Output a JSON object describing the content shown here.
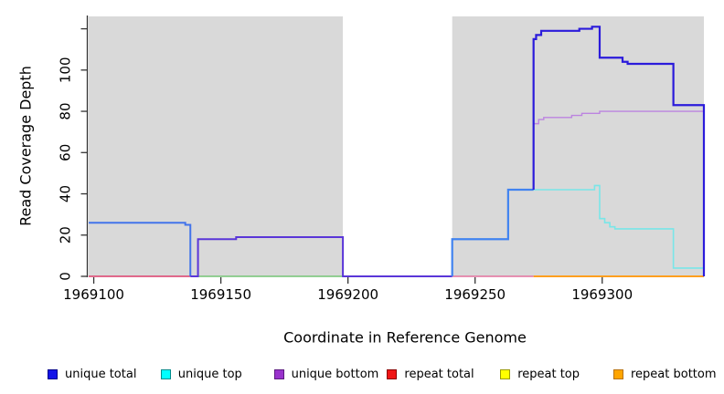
{
  "chart_data": {
    "type": "line",
    "step": true,
    "title": "",
    "xlabel": "Coordinate in Reference Genome",
    "ylabel": "Read Coverage Depth",
    "xlim": [
      1969098,
      1969340
    ],
    "ylim": [
      0,
      126
    ],
    "grid": false,
    "panel_color": "#d9d9d9",
    "background_panels": [
      [
        1969098,
        1969198
      ],
      [
        1969241,
        1969340
      ]
    ],
    "gap_region": [
      1969198,
      1969241
    ],
    "xticks": [
      {
        "v": 1969100,
        "label": "1969100"
      },
      {
        "v": 1969150,
        "label": "1969150"
      },
      {
        "v": 1969200,
        "label": "1969200"
      },
      {
        "v": 1969250,
        "label": "1969250"
      },
      {
        "v": 1969300,
        "label": "1969300"
      }
    ],
    "yticks": [
      {
        "v": 0,
        "label": "0"
      },
      {
        "v": 20,
        "label": "20"
      },
      {
        "v": 40,
        "label": "40"
      },
      {
        "v": 60,
        "label": "60"
      },
      {
        "v": 80,
        "label": "80"
      },
      {
        "v": 100,
        "label": "100"
      },
      {
        "v": 120,
        "label": ""
      }
    ],
    "series": [
      {
        "name": "repeat-total-left",
        "color": "#dc3d6b",
        "width": 1.4,
        "points": [
          [
            1969098,
            0
          ],
          [
            1969138,
            0
          ]
        ]
      },
      {
        "name": "zero-coverage-green",
        "color": "#74c476",
        "width": 1.6,
        "points": [
          [
            1969139,
            0
          ],
          [
            1969198,
            0
          ]
        ]
      },
      {
        "name": "repeat-total-right",
        "color": "#e4709e",
        "width": 1.6,
        "points": [
          [
            1969241,
            0
          ],
          [
            1969273,
            0
          ]
        ]
      },
      {
        "name": "repeat-bottom",
        "color": "#ff9f1f",
        "width": 2,
        "points": [
          [
            1969273,
            0
          ],
          [
            1969340,
            0
          ]
        ]
      },
      {
        "name": "unique-bottom",
        "color": "#bc84e0",
        "width": 1.4,
        "drop_end": true,
        "points": [
          [
            1969273,
            74
          ],
          [
            1969275,
            76
          ],
          [
            1969277,
            77
          ],
          [
            1969288,
            78
          ],
          [
            1969292,
            79
          ],
          [
            1969299,
            80
          ],
          [
            1969340,
            80
          ]
        ]
      },
      {
        "name": "unique-top",
        "color": "#79e6e8",
        "width": 1.6,
        "drop_end": true,
        "points": [
          [
            1969273,
            42
          ],
          [
            1969297,
            44
          ],
          [
            1969299,
            28
          ],
          [
            1969301,
            26
          ],
          [
            1969303,
            24
          ],
          [
            1969305,
            23
          ],
          [
            1969328,
            4
          ],
          [
            1969340,
            4
          ]
        ]
      },
      {
        "name": "unique-total-left",
        "color": "#4374ea",
        "width": 2,
        "drop_end": true,
        "points": [
          [
            1969098,
            26
          ],
          [
            1969136,
            25
          ],
          [
            1969138,
            25
          ]
        ]
      },
      {
        "name": "unique-total-mid",
        "color": "#5a36d8",
        "width": 2,
        "points": [
          [
            1969138,
            0
          ],
          [
            1969141,
            18
          ],
          [
            1969156,
            19
          ],
          [
            1969198,
            0
          ],
          [
            1969241,
            0
          ]
        ]
      },
      {
        "name": "unique-total-right",
        "color": "#4183f0",
        "width": 2.2,
        "enter_value": 0,
        "points": [
          [
            1969241,
            18
          ],
          [
            1969263,
            42
          ],
          [
            1969273,
            42
          ]
        ]
      },
      {
        "name": "unique-total-peak",
        "color": "#2b1bdb",
        "width": 2.2,
        "enter_value": 42,
        "drop_end": true,
        "points": [
          [
            1969273,
            115
          ],
          [
            1969274,
            117
          ],
          [
            1969276,
            119
          ],
          [
            1969291,
            120
          ],
          [
            1969296,
            121
          ],
          [
            1969299,
            106
          ],
          [
            1969308,
            104
          ],
          [
            1969310,
            103
          ],
          [
            1969328,
            83
          ],
          [
            1969340,
            83
          ]
        ]
      }
    ]
  },
  "legend": {
    "items": [
      {
        "label": "unique total",
        "fill": "#1212e8",
        "stroke": "#00008b"
      },
      {
        "label": "unique top",
        "fill": "#00ffff",
        "stroke": "#008b8b"
      },
      {
        "label": "unique bottom",
        "fill": "#9932cc",
        "stroke": "#5c1a80"
      },
      {
        "label": "repeat total",
        "fill": "#f01515",
        "stroke": "#8b0000"
      },
      {
        "label": "repeat top",
        "fill": "#ffff00",
        "stroke": "#9a9a00"
      },
      {
        "label": "repeat bottom",
        "fill": "#ffa500",
        "stroke": "#b8720b"
      }
    ]
  },
  "axis_style": {
    "tick_color": "#333333",
    "label_color": "#000000",
    "axis_line_color": "#333333"
  }
}
